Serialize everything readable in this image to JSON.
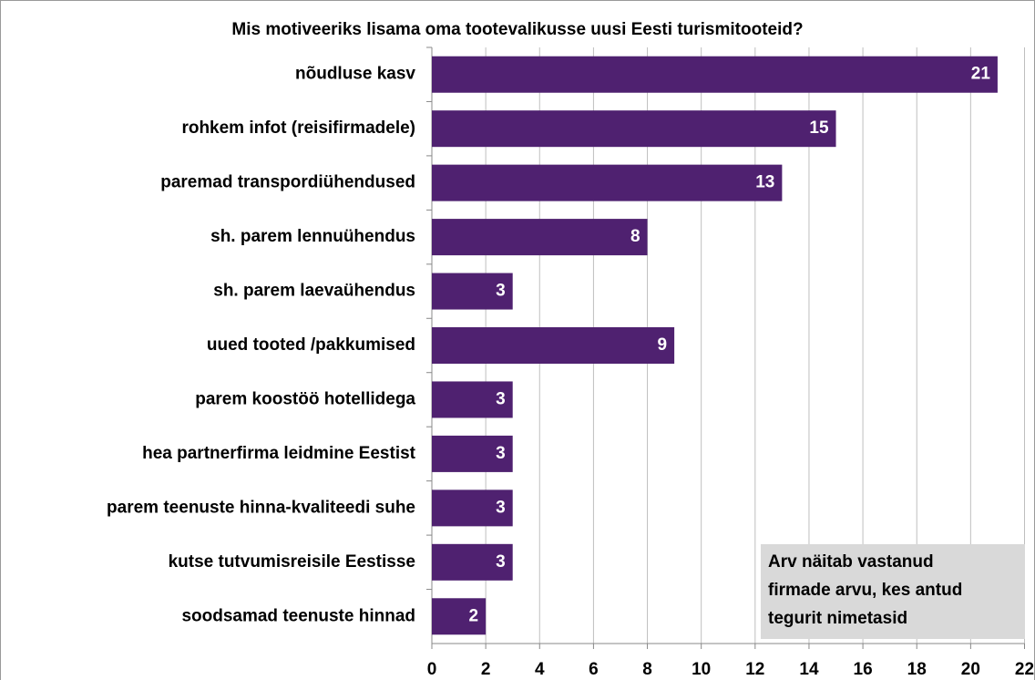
{
  "chart_data": {
    "type": "bar",
    "orientation": "horizontal",
    "title": "Mis motiveeriks lisama oma tootevalikusse uusi Eesti turismitooteid?",
    "categories": [
      "nõudluse kasv",
      "rohkem infot (reisifirmadele)",
      "paremad transpordiühendused",
      "sh. parem lennuühendus",
      "sh. parem laevaühendus",
      "uued tooted /pakkumised",
      "parem koostöö hotellidega",
      "hea partnerfirma leidmine Eestist",
      "parem teenuste hinna-kvaliteedi suhe",
      "kutse tutvumisreisile Eestisse",
      "soodsamad teenuste hinnad"
    ],
    "values": [
      21,
      15,
      13,
      8,
      3,
      9,
      3,
      3,
      3,
      3,
      2
    ],
    "color": "#4f2170",
    "xlim": [
      0,
      22
    ],
    "xticks": [
      0,
      2,
      4,
      6,
      8,
      10,
      12,
      14,
      16,
      18,
      20,
      22
    ],
    "grid": true,
    "annotation": [
      "Arv näitab vastanud",
      "firmade arvu, kes antud",
      "tegurit nimetasid"
    ]
  }
}
